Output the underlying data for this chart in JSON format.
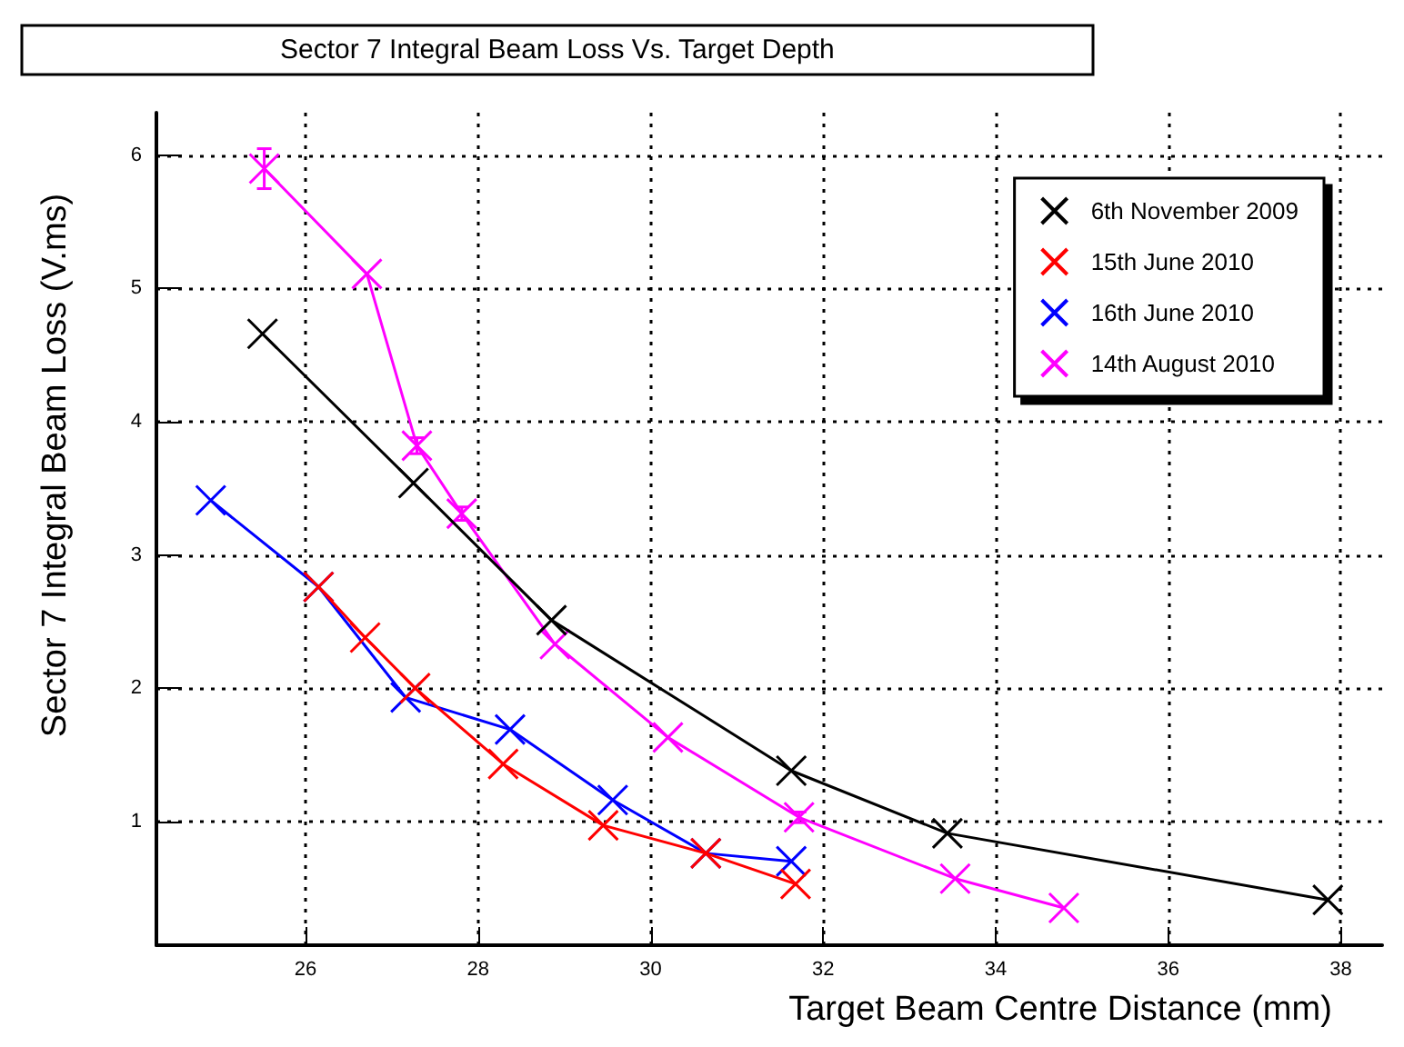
{
  "chart_data": {
    "type": "line",
    "title": "Sector 7 Integral Beam Loss Vs. Target Depth",
    "xlabel": "Target Beam Centre Distance (mm)",
    "ylabel": "Sector 7 Integral Beam Loss (V.ms)",
    "xlim": [
      24.27,
      38.48
    ],
    "ylim": [
      0.07,
      6.32
    ],
    "xticks": [
      26,
      28,
      30,
      32,
      34,
      36,
      38
    ],
    "yticks": [
      1,
      2,
      3,
      4,
      5,
      6
    ],
    "grid": true,
    "legend": "top right",
    "marker": "cross",
    "line_style": "solid",
    "series": [
      {
        "name": "6th November 2009",
        "color": "#000000",
        "x": [
          25.5,
          27.25,
          28.85,
          31.63,
          33.44,
          37.85
        ],
        "values": [
          4.66,
          3.54,
          2.51,
          1.38,
          0.91,
          0.41
        ]
      },
      {
        "name": "15th June 2010",
        "color": "#ff0000",
        "x": [
          26.15,
          26.69,
          27.27,
          28.29,
          29.45,
          30.64,
          31.68
        ],
        "values": [
          2.76,
          2.38,
          2.0,
          1.43,
          0.97,
          0.76,
          0.53
        ]
      },
      {
        "name": "16th June 2010",
        "color": "#0000ff",
        "x": [
          24.9,
          26.15,
          27.16,
          28.37,
          29.56,
          30.64,
          31.63
        ],
        "values": [
          3.41,
          2.76,
          1.93,
          1.69,
          1.16,
          0.76,
          0.7
        ]
      },
      {
        "name": "14th August 2010",
        "color": "#ff00ff",
        "x": [
          25.52,
          26.71,
          27.29,
          27.81,
          28.89,
          30.2,
          31.72,
          33.53,
          34.79
        ],
        "values": [
          5.9,
          5.11,
          3.82,
          3.31,
          2.33,
          1.63,
          1.03,
          0.57,
          0.35
        ],
        "errors": [
          0.15,
          null,
          0.06,
          0.05,
          null,
          null,
          0.04,
          null,
          null
        ]
      }
    ]
  }
}
